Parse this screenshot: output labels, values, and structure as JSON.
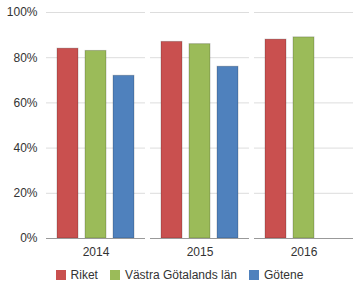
{
  "chart_data": {
    "type": "bar",
    "categories": [
      "2014",
      "2015",
      "2016"
    ],
    "series": [
      {
        "name": "Riket",
        "color": "#c9504f",
        "values": [
          84,
          87,
          88
        ]
      },
      {
        "name": "Västra Götalands län",
        "color": "#9bbb59",
        "values": [
          83,
          86,
          89
        ]
      },
      {
        "name": "Götene",
        "color": "#4f81bd",
        "values": [
          72,
          76,
          null
        ]
      }
    ],
    "ylim": [
      0,
      100
    ],
    "yticks": [
      {
        "value": 0,
        "label": "0%"
      },
      {
        "value": 20,
        "label": "20%"
      },
      {
        "value": 40,
        "label": "40%"
      },
      {
        "value": 60,
        "label": "60%"
      },
      {
        "value": 80,
        "label": "80%"
      },
      {
        "value": 100,
        "label": "100%"
      }
    ],
    "grid": true,
    "legend": "bottom"
  }
}
